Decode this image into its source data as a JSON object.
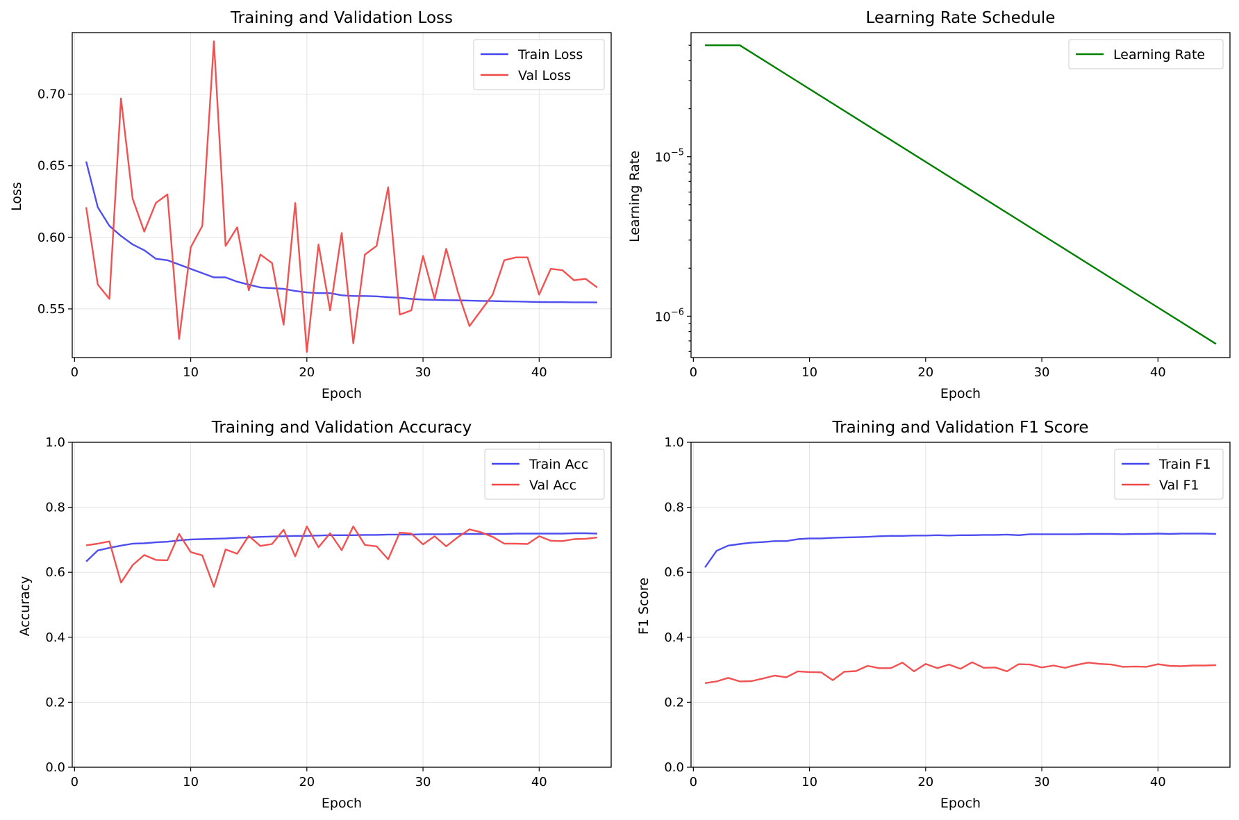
{
  "colors": {
    "train": "#4444ee",
    "val": "#f04848",
    "lr": "#008000"
  },
  "chart_data": [
    {
      "id": "loss",
      "type": "line",
      "title": "Training and Validation Loss",
      "xlabel": "Epoch",
      "ylabel": "Loss",
      "xlim": [
        -0.2,
        46.2
      ],
      "ylim": [
        0.516,
        0.743
      ],
      "xticks": [
        0,
        10,
        20,
        30,
        40
      ],
      "yticks": [
        0.55,
        0.6,
        0.65,
        0.7
      ],
      "ytick_labels": [
        "0.55",
        "0.60",
        "0.65",
        "0.70"
      ],
      "grid": true,
      "legend": "top-right",
      "x": [
        1,
        2,
        3,
        4,
        5,
        6,
        7,
        8,
        9,
        10,
        11,
        12,
        13,
        14,
        15,
        16,
        17,
        18,
        19,
        20,
        21,
        22,
        23,
        24,
        25,
        26,
        27,
        28,
        29,
        30,
        31,
        32,
        33,
        34,
        35,
        36,
        37,
        38,
        39,
        40,
        41,
        42,
        43,
        44,
        45
      ],
      "series": [
        {
          "name": "Train Loss",
          "color": "#4444ee",
          "values": [
            0.653,
            0.621,
            0.608,
            0.601,
            0.595,
            0.591,
            0.585,
            0.584,
            0.581,
            0.578,
            0.575,
            0.572,
            0.572,
            0.569,
            0.567,
            0.565,
            0.5645,
            0.564,
            0.5625,
            0.5615,
            0.561,
            0.561,
            0.5595,
            0.559,
            0.559,
            0.5588,
            0.5582,
            0.5578,
            0.557,
            0.5565,
            0.5563,
            0.5561,
            0.556,
            0.5558,
            0.5556,
            0.5555,
            0.5553,
            0.5552,
            0.555,
            0.5548,
            0.5547,
            0.5547,
            0.5546,
            0.5546,
            0.5545
          ]
        },
        {
          "name": "Val Loss",
          "color": "#f04848",
          "values": [
            0.621,
            0.567,
            0.557,
            0.697,
            0.627,
            0.604,
            0.624,
            0.63,
            0.529,
            0.593,
            0.608,
            0.737,
            0.594,
            0.607,
            0.563,
            0.588,
            0.582,
            0.539,
            0.624,
            0.52,
            0.595,
            0.549,
            0.603,
            0.526,
            0.588,
            0.594,
            0.635,
            0.546,
            0.549,
            0.587,
            0.557,
            0.592,
            0.562,
            0.538,
            0.549,
            0.56,
            0.584,
            0.586,
            0.586,
            0.56,
            0.578,
            0.577,
            0.57,
            0.571,
            0.565
          ]
        }
      ]
    },
    {
      "id": "lr",
      "type": "line",
      "title": "Learning Rate Schedule",
      "xlabel": "Epoch",
      "ylabel": "Learning Rate",
      "yscale": "log",
      "xlim": [
        -0.2,
        46.2
      ],
      "ylim": [
        5.5e-07,
        6e-05
      ],
      "xticks": [
        0,
        10,
        20,
        30,
        40
      ],
      "yticks": [
        1e-06,
        1e-05
      ],
      "ytick_base": [
        "10",
        "10"
      ],
      "ytick_exp": [
        "−6",
        "−5"
      ],
      "grid": false,
      "legend": "top-right",
      "x": [
        1,
        4,
        45
      ],
      "series": [
        {
          "name": "Learning Rate",
          "color": "#008000",
          "values": [
            5e-05,
            5e-05,
            6.7e-07
          ]
        }
      ]
    },
    {
      "id": "acc",
      "type": "line",
      "title": "Training and Validation Accuracy",
      "xlabel": "Epoch",
      "ylabel": "Accuracy",
      "xlim": [
        -0.2,
        46.2
      ],
      "ylim": [
        0,
        1
      ],
      "xticks": [
        0,
        10,
        20,
        30,
        40
      ],
      "yticks": [
        0,
        0.2,
        0.4,
        0.6,
        0.8,
        1.0
      ],
      "ytick_labels": [
        "0.0",
        "0.2",
        "0.4",
        "0.6",
        "0.8",
        "1.0"
      ],
      "grid": true,
      "legend": "top-right",
      "x": [
        1,
        2,
        3,
        4,
        5,
        6,
        7,
        8,
        9,
        10,
        11,
        12,
        13,
        14,
        15,
        16,
        17,
        18,
        19,
        20,
        21,
        22,
        23,
        24,
        25,
        26,
        27,
        28,
        29,
        30,
        31,
        32,
        33,
        34,
        35,
        36,
        37,
        38,
        39,
        40,
        41,
        42,
        43,
        44,
        45
      ],
      "series": [
        {
          "name": "Train Acc",
          "color": "#4444ee",
          "values": [
            0.633,
            0.667,
            0.675,
            0.682,
            0.688,
            0.689,
            0.692,
            0.694,
            0.698,
            0.701,
            0.702,
            0.703,
            0.704,
            0.706,
            0.707,
            0.709,
            0.71,
            0.711,
            0.712,
            0.712,
            0.713,
            0.714,
            0.714,
            0.714,
            0.715,
            0.715,
            0.716,
            0.716,
            0.716,
            0.717,
            0.717,
            0.717,
            0.718,
            0.718,
            0.718,
            0.718,
            0.718,
            0.719,
            0.719,
            0.719,
            0.719,
            0.719,
            0.72,
            0.72,
            0.719
          ]
        },
        {
          "name": "Val Acc",
          "color": "#f04848",
          "values": [
            0.683,
            0.688,
            0.695,
            0.568,
            0.622,
            0.653,
            0.638,
            0.637,
            0.718,
            0.662,
            0.652,
            0.555,
            0.67,
            0.657,
            0.712,
            0.681,
            0.687,
            0.731,
            0.649,
            0.741,
            0.677,
            0.72,
            0.668,
            0.741,
            0.684,
            0.68,
            0.64,
            0.722,
            0.719,
            0.686,
            0.711,
            0.68,
            0.708,
            0.732,
            0.723,
            0.709,
            0.688,
            0.688,
            0.687,
            0.711,
            0.697,
            0.696,
            0.702,
            0.703,
            0.707
          ]
        }
      ]
    },
    {
      "id": "f1",
      "type": "line",
      "title": "Training and Validation F1 Score",
      "xlabel": "Epoch",
      "ylabel": "F1 Score",
      "xlim": [
        -0.2,
        46.2
      ],
      "ylim": [
        0,
        1
      ],
      "xticks": [
        0,
        10,
        20,
        30,
        40
      ],
      "yticks": [
        0,
        0.2,
        0.4,
        0.6,
        0.8,
        1.0
      ],
      "ytick_labels": [
        "0.0",
        "0.2",
        "0.4",
        "0.6",
        "0.8",
        "1.0"
      ],
      "grid": true,
      "legend": "top-right",
      "x": [
        1,
        2,
        3,
        4,
        5,
        6,
        7,
        8,
        9,
        10,
        11,
        12,
        13,
        14,
        15,
        16,
        17,
        18,
        19,
        20,
        21,
        22,
        23,
        24,
        25,
        26,
        27,
        28,
        29,
        30,
        31,
        32,
        33,
        34,
        35,
        36,
        37,
        38,
        39,
        40,
        41,
        42,
        43,
        44,
        45
      ],
      "series": [
        {
          "name": "Train F1",
          "color": "#4444ee",
          "values": [
            0.615,
            0.666,
            0.682,
            0.687,
            0.691,
            0.693,
            0.696,
            0.696,
            0.702,
            0.704,
            0.704,
            0.706,
            0.707,
            0.708,
            0.709,
            0.711,
            0.712,
            0.712,
            0.713,
            0.713,
            0.714,
            0.713,
            0.714,
            0.714,
            0.715,
            0.715,
            0.716,
            0.714,
            0.717,
            0.717,
            0.717,
            0.717,
            0.717,
            0.718,
            0.718,
            0.718,
            0.717,
            0.718,
            0.718,
            0.719,
            0.718,
            0.719,
            0.719,
            0.719,
            0.718
          ]
        },
        {
          "name": "Val F1",
          "color": "#f04848",
          "values": [
            0.259,
            0.264,
            0.275,
            0.264,
            0.265,
            0.273,
            0.282,
            0.277,
            0.295,
            0.293,
            0.292,
            0.268,
            0.294,
            0.296,
            0.312,
            0.305,
            0.305,
            0.322,
            0.295,
            0.318,
            0.305,
            0.316,
            0.303,
            0.323,
            0.306,
            0.307,
            0.295,
            0.317,
            0.316,
            0.307,
            0.313,
            0.306,
            0.315,
            0.322,
            0.318,
            0.316,
            0.309,
            0.31,
            0.309,
            0.317,
            0.312,
            0.311,
            0.313,
            0.313,
            0.314
          ]
        }
      ]
    }
  ]
}
